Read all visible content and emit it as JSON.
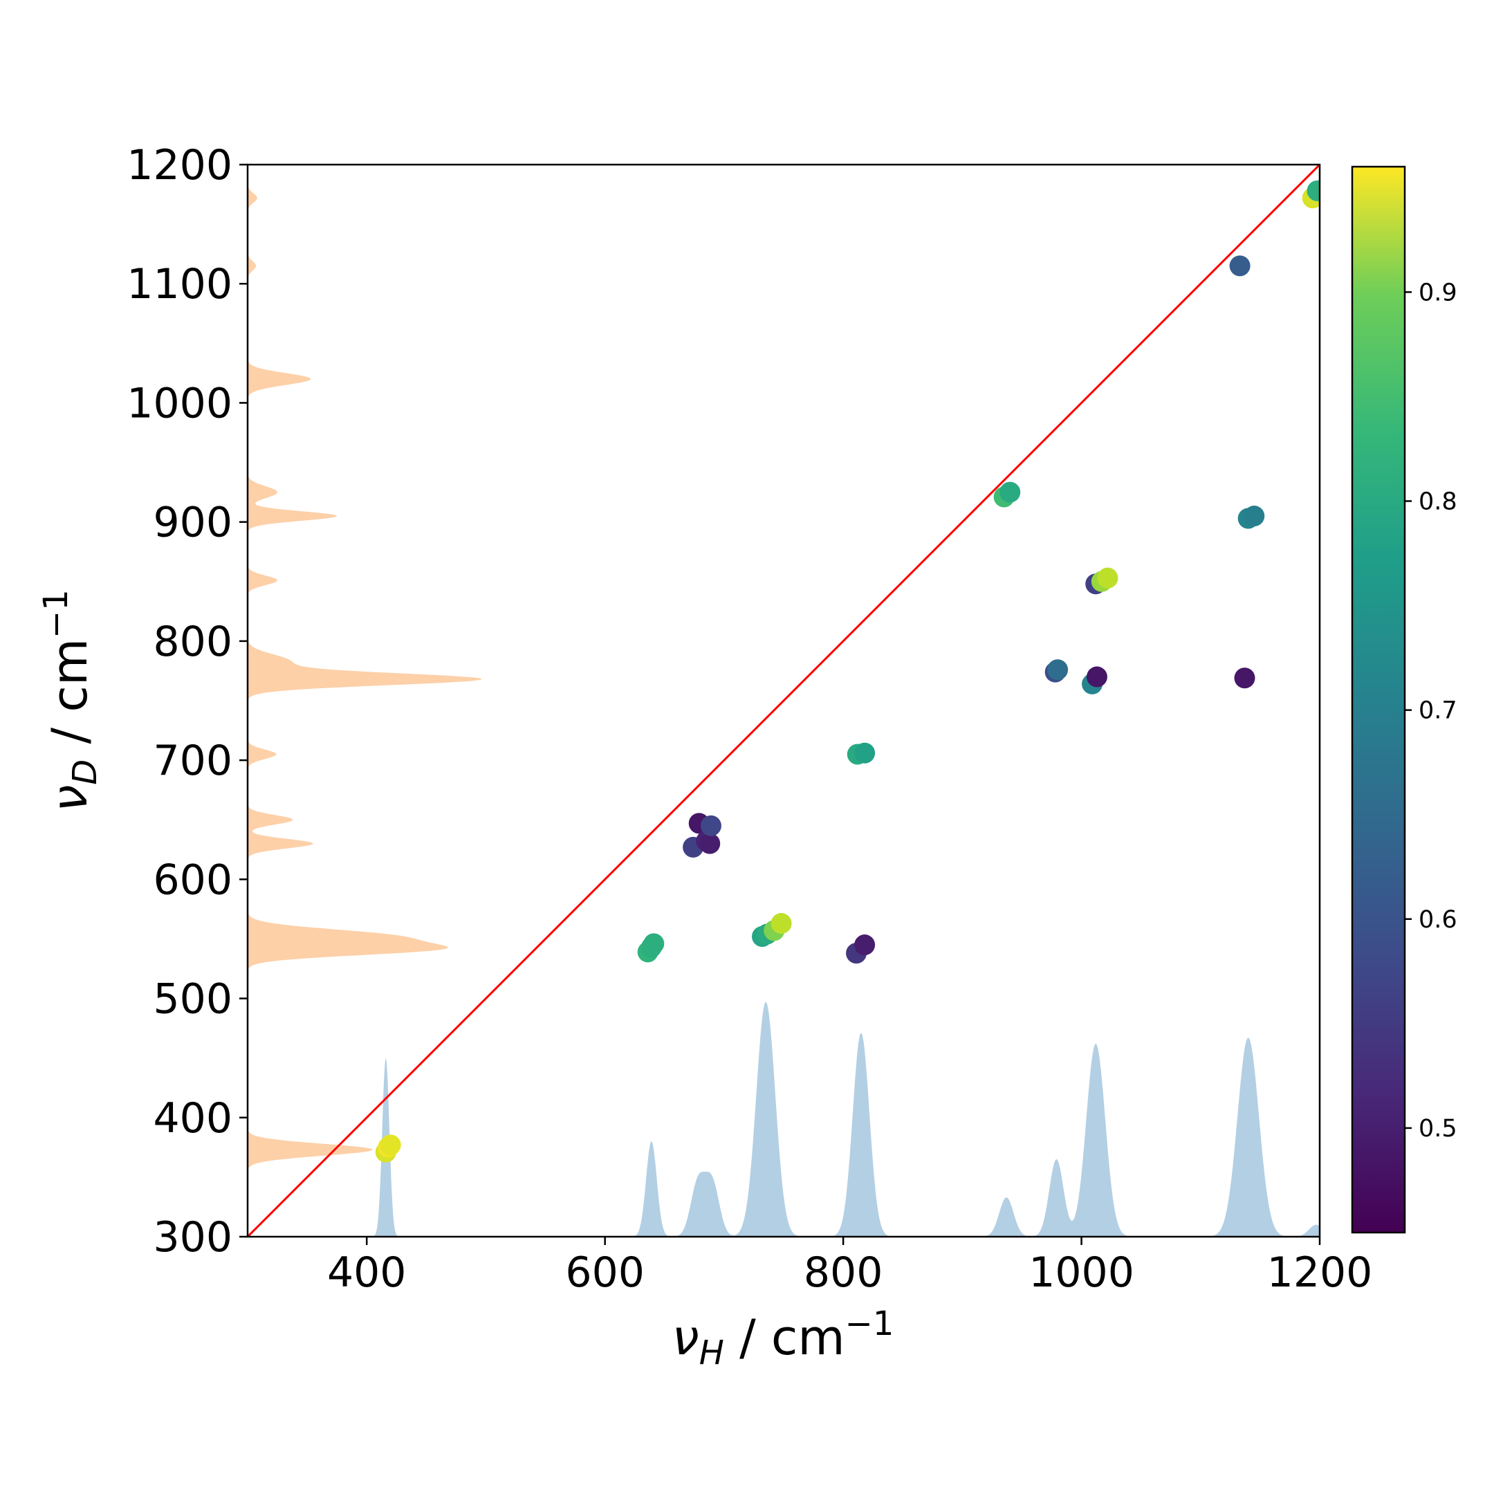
{
  "chart_data": {
    "type": "scatter",
    "title": "",
    "xlabel": {
      "symbol": "ν",
      "subscript": "H",
      "unit": " / cm",
      "exponent": "−1"
    },
    "ylabel": {
      "symbol": "ν",
      "subscript": "D",
      "unit": " / cm",
      "exponent": "−1"
    },
    "xlim": [
      300,
      1200
    ],
    "ylim": [
      300,
      1200
    ],
    "xticks": [
      400,
      600,
      800,
      1000,
      1200
    ],
    "yticks": [
      300,
      400,
      500,
      600,
      700,
      800,
      900,
      1000,
      1100,
      1200
    ],
    "grid": false,
    "diagonal_line": {
      "from": [
        300,
        300
      ],
      "to": [
        1200,
        1200
      ],
      "color": "#ff0000"
    },
    "colorbar": {
      "colormap": "viridis",
      "range": [
        0.45,
        0.96
      ],
      "ticks": [
        0.5,
        0.6,
        0.7,
        0.8,
        0.9
      ],
      "tick_labels": [
        "0.5",
        "0.6",
        "0.7",
        "0.8",
        "0.9"
      ]
    },
    "scatter_points": [
      {
        "x": 416,
        "y": 371,
        "c": 0.93
      },
      {
        "x": 418,
        "y": 375,
        "c": 0.95
      },
      {
        "x": 420,
        "y": 377,
        "c": 0.94
      },
      {
        "x": 636,
        "y": 539,
        "c": 0.78
      },
      {
        "x": 639,
        "y": 543,
        "c": 0.77
      },
      {
        "x": 641,
        "y": 546,
        "c": 0.77
      },
      {
        "x": 674,
        "y": 627,
        "c": 0.55
      },
      {
        "x": 679,
        "y": 647,
        "c": 0.48
      },
      {
        "x": 685,
        "y": 632,
        "c": 0.5
      },
      {
        "x": 688,
        "y": 630,
        "c": 0.49
      },
      {
        "x": 689,
        "y": 645,
        "c": 0.56
      },
      {
        "x": 732,
        "y": 552,
        "c": 0.75
      },
      {
        "x": 736,
        "y": 554,
        "c": 0.76
      },
      {
        "x": 742,
        "y": 557,
        "c": 0.86
      },
      {
        "x": 748,
        "y": 563,
        "c": 0.91
      },
      {
        "x": 811,
        "y": 538,
        "c": 0.53
      },
      {
        "x": 818,
        "y": 545,
        "c": 0.49
      },
      {
        "x": 812,
        "y": 705,
        "c": 0.76
      },
      {
        "x": 818,
        "y": 706,
        "c": 0.74
      },
      {
        "x": 935,
        "y": 921,
        "c": 0.8
      },
      {
        "x": 940,
        "y": 925,
        "c": 0.76
      },
      {
        "x": 978,
        "y": 774,
        "c": 0.57
      },
      {
        "x": 980,
        "y": 776,
        "c": 0.63
      },
      {
        "x": 1009,
        "y": 764,
        "c": 0.68
      },
      {
        "x": 1013,
        "y": 770,
        "c": 0.48
      },
      {
        "x": 1012,
        "y": 848,
        "c": 0.55
      },
      {
        "x": 1017,
        "y": 850,
        "c": 0.88
      },
      {
        "x": 1022,
        "y": 853,
        "c": 0.91
      },
      {
        "x": 1133,
        "y": 1115,
        "c": 0.6
      },
      {
        "x": 1137,
        "y": 769,
        "c": 0.48
      },
      {
        "x": 1140,
        "y": 903,
        "c": 0.68
      },
      {
        "x": 1145,
        "y": 905,
        "c": 0.67
      },
      {
        "x": 1194,
        "y": 1172,
        "c": 0.93
      },
      {
        "x": 1198,
        "y": 1178,
        "c": 0.77
      }
    ],
    "spectrum_H": {
      "orientation": "horizontal",
      "color": "#b3cfe4",
      "baseline": 300,
      "peaks": [
        {
          "center": 416,
          "amplitude": 150,
          "width": 3
        },
        {
          "center": 639,
          "amplitude": 80,
          "width": 4.5
        },
        {
          "center": 678,
          "amplitude": 45,
          "width": 6
        },
        {
          "center": 690,
          "amplitude": 45,
          "width": 6
        },
        {
          "center": 735,
          "amplitude": 197,
          "width": 8
        },
        {
          "center": 815,
          "amplitude": 171,
          "width": 7
        },
        {
          "center": 937,
          "amplitude": 33,
          "width": 6
        },
        {
          "center": 979,
          "amplitude": 65,
          "width": 6
        },
        {
          "center": 1012,
          "amplitude": 162,
          "width": 8
        },
        {
          "center": 1140,
          "amplitude": 167,
          "width": 9
        },
        {
          "center": 1197,
          "amplitude": 10,
          "width": 6
        }
      ]
    },
    "spectrum_D": {
      "orientation": "vertical",
      "color": "#fdd0a8",
      "baseline": 300,
      "peaks": [
        {
          "center": 373,
          "amplitude": 105,
          "width": 5
        },
        {
          "center": 541,
          "amplitude": 140,
          "width": 5
        },
        {
          "center": 552,
          "amplitude": 120,
          "width": 6
        },
        {
          "center": 630,
          "amplitude": 55,
          "width": 4
        },
        {
          "center": 650,
          "amplitude": 38,
          "width": 4
        },
        {
          "center": 705,
          "amplitude": 24,
          "width": 4
        },
        {
          "center": 768,
          "amplitude": 195,
          "width": 5
        },
        {
          "center": 783,
          "amplitude": 35,
          "width": 6
        },
        {
          "center": 851,
          "amplitude": 25,
          "width": 4
        },
        {
          "center": 905,
          "amplitude": 75,
          "width": 4
        },
        {
          "center": 925,
          "amplitude": 25,
          "width": 5
        },
        {
          "center": 1020,
          "amplitude": 53,
          "width": 5
        },
        {
          "center": 1115,
          "amplitude": 7,
          "width": 4
        },
        {
          "center": 1172,
          "amplitude": 8,
          "width": 4
        }
      ]
    }
  }
}
